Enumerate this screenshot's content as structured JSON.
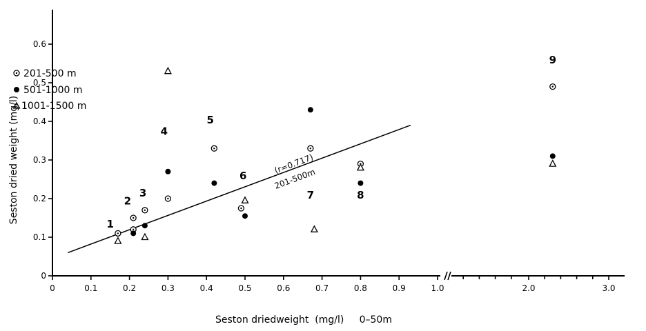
{
  "chart_data": {
    "type": "scatter",
    "title": "",
    "xlabel": "Seston driedweight  (mg/l)     0–50m",
    "ylabel": "Seston dried weight  (mg/l)",
    "x_break": {
      "from": 1.0,
      "to": 2.0
    },
    "xlim": [
      0,
      3.0
    ],
    "ylim": [
      0,
      0.65
    ],
    "x_ticks": [
      {
        "value": 0,
        "label": "0"
      },
      {
        "value": 0.1,
        "label": "0.1"
      },
      {
        "value": 0.2,
        "label": "0.2"
      },
      {
        "value": 0.3,
        "label": "0.3"
      },
      {
        "value": 0.4,
        "label": "0.4"
      },
      {
        "value": 0.5,
        "label": "0.5"
      },
      {
        "value": 0.6,
        "label": "0.6"
      },
      {
        "value": 0.7,
        "label": "0.7"
      },
      {
        "value": 0.8,
        "label": "0.8"
      },
      {
        "value": 0.9,
        "label": "0.9"
      },
      {
        "value": 1.0,
        "label": "1.0"
      },
      {
        "value": 2.0,
        "label": "2.0"
      },
      {
        "value": 3.0,
        "label": "3.0"
      }
    ],
    "x_minor_ticks": [
      1.2,
      1.4,
      1.6,
      1.8,
      2.2,
      2.4,
      2.6,
      2.8
    ],
    "y_ticks": [
      {
        "value": 0,
        "label": "0"
      },
      {
        "value": 0.1,
        "label": "0.1"
      },
      {
        "value": 0.2,
        "label": "0.2"
      },
      {
        "value": 0.3,
        "label": "0.3"
      },
      {
        "value": 0.4,
        "label": "0.4"
      },
      {
        "value": 0.5,
        "label": "0.5"
      },
      {
        "value": 0.6,
        "label": "0.6"
      }
    ],
    "legend_position": "top-left",
    "series": [
      {
        "name": "201-500 m",
        "marker": "dotted-circle",
        "points": [
          {
            "x": 0.17,
            "y": 0.11
          },
          {
            "x": 0.21,
            "y": 0.12
          },
          {
            "x": 0.21,
            "y": 0.15
          },
          {
            "x": 0.24,
            "y": 0.17
          },
          {
            "x": 0.3,
            "y": 0.2
          },
          {
            "x": 0.42,
            "y": 0.33
          },
          {
            "x": 0.49,
            "y": 0.175
          },
          {
            "x": 0.67,
            "y": 0.33
          },
          {
            "x": 0.8,
            "y": 0.29
          },
          {
            "x": 2.3,
            "y": 0.49
          }
        ]
      },
      {
        "name": "501-1000 m",
        "marker": "filled-circle",
        "points": [
          {
            "x": 0.21,
            "y": 0.11
          },
          {
            "x": 0.24,
            "y": 0.13
          },
          {
            "x": 0.3,
            "y": 0.27
          },
          {
            "x": 0.42,
            "y": 0.24
          },
          {
            "x": 0.5,
            "y": 0.155
          },
          {
            "x": 0.67,
            "y": 0.43
          },
          {
            "x": 0.8,
            "y": 0.24
          },
          {
            "x": 2.3,
            "y": 0.31
          }
        ]
      },
      {
        "name": "1001-1500 m",
        "marker": "triangle",
        "points": [
          {
            "x": 0.17,
            "y": 0.09
          },
          {
            "x": 0.24,
            "y": 0.1
          },
          {
            "x": 0.3,
            "y": 0.53
          },
          {
            "x": 0.5,
            "y": 0.195
          },
          {
            "x": 0.68,
            "y": 0.12
          },
          {
            "x": 0.8,
            "y": 0.28
          },
          {
            "x": 2.3,
            "y": 0.29
          }
        ]
      }
    ],
    "station_labels": [
      {
        "text": "1",
        "x": 0.15,
        "y": 0.125
      },
      {
        "text": "2",
        "x": 0.195,
        "y": 0.185
      },
      {
        "text": "3",
        "x": 0.235,
        "y": 0.205
      },
      {
        "text": "4",
        "x": 0.29,
        "y": 0.365
      },
      {
        "text": "5",
        "x": 0.41,
        "y": 0.395
      },
      {
        "text": "6",
        "x": 0.495,
        "y": 0.25
      },
      {
        "text": "7",
        "x": 0.67,
        "y": 0.2
      },
      {
        "text": "8",
        "x": 0.8,
        "y": 0.2
      },
      {
        "text": "9",
        "x": 2.3,
        "y": 0.55
      }
    ],
    "regression": {
      "from": {
        "x": 0.04,
        "y": 0.06
      },
      "to": {
        "x": 0.93,
        "y": 0.39
      },
      "label_r": "(r=0.717)",
      "label_range": "201-500m"
    }
  }
}
